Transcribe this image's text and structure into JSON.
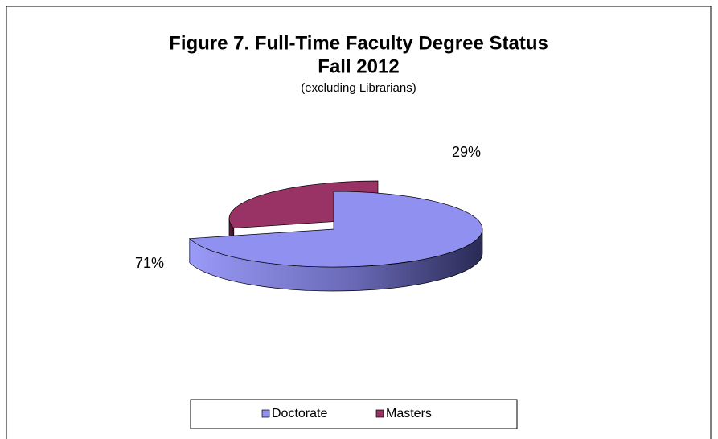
{
  "chart_data": {
    "type": "pie",
    "title": "Figure 7. Full-Time Faculty Degree Status",
    "subtitle": "Fall 2012",
    "note": "(excluding Librarians)",
    "categories": [
      "Doctorate",
      "Masters"
    ],
    "values": [
      71,
      29
    ],
    "value_labels": [
      "71%",
      "29%"
    ],
    "colors": [
      "#9090f0",
      "#993366"
    ],
    "legend": "bottom"
  }
}
